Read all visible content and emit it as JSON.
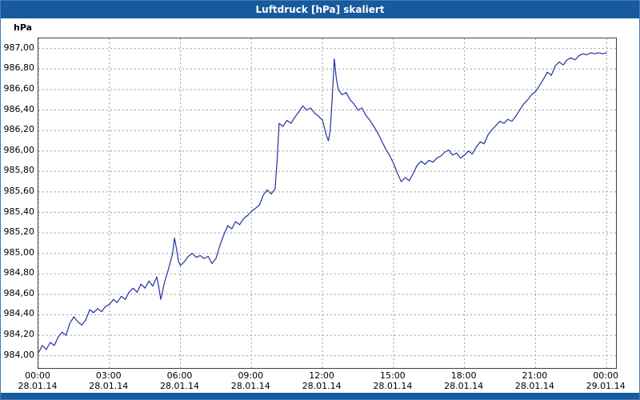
{
  "window": {
    "title": "Luftdruck [hPa] skaliert"
  },
  "colors": {
    "title_bar": "#175a9d",
    "frame": "#4a7ab5",
    "footer": "#175a9d",
    "line": "#2333a0",
    "grid": "#9c9c9c",
    "plot_border": "#404040"
  },
  "chart_data": {
    "type": "line",
    "title": "Luftdruck [hPa] skaliert",
    "ylabel": "hPa",
    "xlabel": "",
    "ylim": [
      983.88,
      987.1
    ],
    "xlim_hours": [
      0,
      24.4
    ],
    "grid": "dashed",
    "legend": "none",
    "y_ticks": [
      {
        "value": 987.0,
        "label": "987,00"
      },
      {
        "value": 986.8,
        "label": "986,80"
      },
      {
        "value": 986.6,
        "label": "986,60"
      },
      {
        "value": 986.4,
        "label": "986,40"
      },
      {
        "value": 986.2,
        "label": "986,20"
      },
      {
        "value": 986.0,
        "label": "986,00"
      },
      {
        "value": 985.8,
        "label": "985,80"
      },
      {
        "value": 985.6,
        "label": "985,60"
      },
      {
        "value": 985.4,
        "label": "985,40"
      },
      {
        "value": 985.2,
        "label": "985,20"
      },
      {
        "value": 985.0,
        "label": "985,00"
      },
      {
        "value": 984.8,
        "label": "984,80"
      },
      {
        "value": 984.6,
        "label": "984,60"
      },
      {
        "value": 984.4,
        "label": "984,40"
      },
      {
        "value": 984.2,
        "label": "984,20"
      },
      {
        "value": 984.0,
        "label": "984,00"
      }
    ],
    "x_ticks": [
      {
        "hour": 0,
        "time": "00:00",
        "date": "28.01.14"
      },
      {
        "hour": 3,
        "time": "03:00",
        "date": "28.01.14"
      },
      {
        "hour": 6,
        "time": "06:00",
        "date": "28.01.14"
      },
      {
        "hour": 9,
        "time": "09:00",
        "date": "28.01.14"
      },
      {
        "hour": 12,
        "time": "12:00",
        "date": "28.01.14"
      },
      {
        "hour": 15,
        "time": "15:00",
        "date": "28.01.14"
      },
      {
        "hour": 18,
        "time": "18:00",
        "date": "28.01.14"
      },
      {
        "hour": 21,
        "time": "21:00",
        "date": "28.01.14"
      },
      {
        "hour": 24,
        "time": "00:00",
        "date": "29.01.14"
      }
    ],
    "series": [
      {
        "name": "Luftdruck [hPa] skaliert",
        "color": "#2333a0",
        "x_hours": [
          0,
          0.17,
          0.33,
          0.5,
          0.67,
          0.83,
          1,
          1.17,
          1.33,
          1.5,
          1.67,
          1.83,
          2,
          2.17,
          2.33,
          2.5,
          2.67,
          2.83,
          3,
          3.17,
          3.33,
          3.5,
          3.67,
          3.83,
          4,
          4.17,
          4.33,
          4.5,
          4.67,
          4.83,
          5,
          5.08,
          5.17,
          5.33,
          5.5,
          5.67,
          5.75,
          5.83,
          5.92,
          6,
          6.17,
          6.33,
          6.5,
          6.67,
          6.83,
          7,
          7.17,
          7.33,
          7.5,
          7.67,
          7.83,
          8,
          8.17,
          8.33,
          8.5,
          8.67,
          8.83,
          9,
          9.17,
          9.33,
          9.5,
          9.67,
          9.83,
          10,
          10.08,
          10.17,
          10.33,
          10.5,
          10.67,
          10.83,
          11,
          11.17,
          11.33,
          11.5,
          11.67,
          11.83,
          12,
          12.17,
          12.25,
          12.33,
          12.42,
          12.5,
          12.58,
          12.67,
          12.83,
          13,
          13.17,
          13.33,
          13.5,
          13.67,
          13.83,
          14,
          14.17,
          14.33,
          14.5,
          14.67,
          14.83,
          15,
          15.17,
          15.33,
          15.5,
          15.67,
          15.83,
          16,
          16.17,
          16.33,
          16.5,
          16.67,
          16.83,
          17,
          17.17,
          17.33,
          17.5,
          17.67,
          17.83,
          18,
          18.17,
          18.33,
          18.5,
          18.67,
          18.83,
          19,
          19.17,
          19.33,
          19.5,
          19.67,
          19.83,
          20,
          20.17,
          20.33,
          20.5,
          20.67,
          20.83,
          21,
          21.17,
          21.33,
          21.5,
          21.67,
          21.83,
          22,
          22.17,
          22.33,
          22.5,
          22.67,
          22.83,
          23,
          23.17,
          23.33,
          23.5,
          23.67,
          23.83,
          24
        ],
        "values": [
          984.03,
          984.1,
          984.06,
          984.13,
          984.1,
          984.18,
          984.23,
          984.2,
          984.32,
          984.38,
          984.33,
          984.3,
          984.35,
          984.45,
          984.42,
          984.46,
          984.43,
          984.48,
          984.5,
          984.55,
          984.52,
          984.58,
          984.55,
          984.62,
          984.66,
          984.62,
          984.7,
          984.66,
          984.73,
          984.68,
          984.77,
          984.68,
          984.55,
          984.72,
          984.85,
          985,
          985.15,
          985.05,
          984.92,
          984.88,
          984.92,
          984.97,
          985,
          984.96,
          984.98,
          984.95,
          984.97,
          984.9,
          984.95,
          985.08,
          985.18,
          985.27,
          985.24,
          985.31,
          985.28,
          985.34,
          985.37,
          985.41,
          985.44,
          985.47,
          985.57,
          985.62,
          985.58,
          985.63,
          985.9,
          986.27,
          986.24,
          986.3,
          986.27,
          986.33,
          986.38,
          986.44,
          986.4,
          986.42,
          986.37,
          986.34,
          986.3,
          986.15,
          986.1,
          986.2,
          986.55,
          986.9,
          986.72,
          986.6,
          986.55,
          986.57,
          986.5,
          986.46,
          986.4,
          986.42,
          986.35,
          986.3,
          986.24,
          986.18,
          986.1,
          986.02,
          985.96,
          985.88,
          985.78,
          985.7,
          985.74,
          985.71,
          985.78,
          985.86,
          985.9,
          985.87,
          985.91,
          985.89,
          985.93,
          985.95,
          985.99,
          986.01,
          985.96,
          985.98,
          985.93,
          985.96,
          986,
          985.97,
          986.04,
          986.09,
          986.07,
          986.16,
          986.21,
          986.25,
          986.29,
          986.27,
          986.31,
          986.29,
          986.34,
          986.4,
          986.46,
          986.5,
          986.55,
          986.58,
          986.64,
          986.7,
          986.77,
          986.74,
          986.83,
          986.87,
          986.84,
          986.89,
          986.91,
          986.89,
          986.93,
          986.95,
          986.94,
          986.96,
          986.95,
          986.96,
          986.95,
          986.96
        ]
      }
    ]
  }
}
